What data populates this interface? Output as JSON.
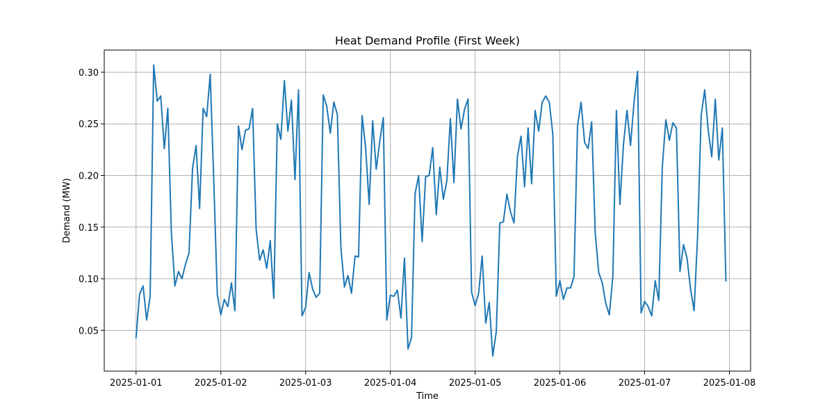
{
  "chart_data": {
    "type": "line",
    "title": "Heat Demand Profile (First Week)",
    "xlabel": "Time",
    "ylabel": "Demand (MW)",
    "x_start": "2025-01-01T00:00",
    "x_step_hours": 1,
    "xlim": [
      "2025-12-31T15:00",
      "2025-01-08T06:00"
    ],
    "ylim": [
      0.0105,
      0.3215
    ],
    "grid": true,
    "series_color": "#1f77b4",
    "xticks": [
      {
        "value": "2025-01-01",
        "label": "2025-01-01"
      },
      {
        "value": "2025-01-02",
        "label": "2025-01-02"
      },
      {
        "value": "2025-01-03",
        "label": "2025-01-03"
      },
      {
        "value": "2025-01-04",
        "label": "2025-01-04"
      },
      {
        "value": "2025-01-05",
        "label": "2025-01-05"
      },
      {
        "value": "2025-01-06",
        "label": "2025-01-06"
      },
      {
        "value": "2025-01-07",
        "label": "2025-01-07"
      },
      {
        "value": "2025-01-08",
        "label": "2025-01-08"
      }
    ],
    "yticks": [
      {
        "value": 0.05,
        "label": "0.05"
      },
      {
        "value": 0.1,
        "label": "0.10"
      },
      {
        "value": 0.15,
        "label": "0.15"
      },
      {
        "value": 0.2,
        "label": "0.20"
      },
      {
        "value": 0.25,
        "label": "0.25"
      },
      {
        "value": 0.3,
        "label": "0.30"
      }
    ],
    "series": [
      {
        "values": [
          0.043,
          0.085,
          0.093,
          0.06,
          0.083,
          0.307,
          0.272,
          0.277,
          0.226,
          0.265,
          0.145,
          0.093,
          0.107,
          0.1,
          0.114,
          0.125,
          0.207,
          0.229,
          0.168,
          0.265,
          0.257,
          0.298,
          0.196,
          0.085,
          0.065,
          0.08,
          0.073,
          0.096,
          0.069,
          0.248,
          0.225,
          0.244,
          0.245,
          0.265,
          0.148,
          0.118,
          0.128,
          0.11,
          0.137,
          0.081,
          0.25,
          0.235,
          0.292,
          0.243,
          0.273,
          0.196,
          0.283,
          0.064,
          0.072,
          0.106,
          0.09,
          0.082,
          0.086,
          0.278,
          0.267,
          0.241,
          0.271,
          0.259,
          0.13,
          0.092,
          0.103,
          0.086,
          0.122,
          0.121,
          0.258,
          0.227,
          0.172,
          0.253,
          0.206,
          0.233,
          0.256,
          0.06,
          0.084,
          0.083,
          0.089,
          0.062,
          0.12,
          0.032,
          0.043,
          0.182,
          0.2,
          0.136,
          0.199,
          0.2,
          0.227,
          0.162,
          0.208,
          0.177,
          0.195,
          0.255,
          0.193,
          0.274,
          0.245,
          0.264,
          0.274,
          0.087,
          0.074,
          0.086,
          0.122,
          0.057,
          0.077,
          0.025,
          0.049,
          0.154,
          0.155,
          0.182,
          0.165,
          0.154,
          0.219,
          0.238,
          0.189,
          0.246,
          0.192,
          0.263,
          0.243,
          0.271,
          0.277,
          0.271,
          0.24,
          0.083,
          0.098,
          0.08,
          0.091,
          0.091,
          0.102,
          0.248,
          0.271,
          0.232,
          0.226,
          0.252,
          0.145,
          0.106,
          0.096,
          0.076,
          0.065,
          0.102,
          0.263,
          0.172,
          0.23,
          0.263,
          0.229,
          0.271,
          0.301,
          0.067,
          0.078,
          0.073,
          0.064,
          0.098,
          0.079,
          0.208,
          0.254,
          0.234,
          0.251,
          0.246,
          0.107,
          0.133,
          0.12,
          0.09,
          0.069,
          0.142,
          0.258,
          0.283,
          0.244,
          0.218,
          0.274,
          0.215,
          0.246,
          0.098
        ]
      }
    ]
  }
}
